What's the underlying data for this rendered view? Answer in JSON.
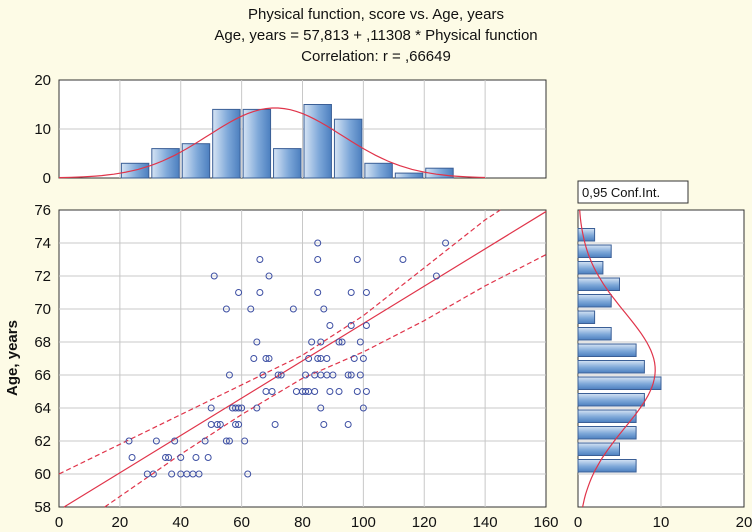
{
  "chart_data": {
    "type": "scatter",
    "title_lines": [
      "Physical function, score vs. Age, years",
      "Age, years = 57,813 + ,11308 * Physical function",
      "Correlation: r = ,66649"
    ],
    "xlabel": "Physical function, score",
    "ylabel": "Age, years",
    "xlim": [
      0,
      160
    ],
    "ylim": [
      58,
      76
    ],
    "x_ticks": [
      "0",
      "20",
      "40",
      "60",
      "80",
      "100",
      "120",
      "140",
      "160"
    ],
    "y_ticks": [
      "58",
      "60",
      "62",
      "64",
      "66",
      "68",
      "70",
      "72",
      "74",
      "76"
    ],
    "regression": {
      "intercept": 57.813,
      "slope": 0.11308,
      "r": 0.66649
    },
    "confidence_label": "0,95 Conf.Int.",
    "points": [
      [
        23,
        62
      ],
      [
        24,
        61
      ],
      [
        29,
        60
      ],
      [
        31,
        60
      ],
      [
        32,
        62
      ],
      [
        35,
        61
      ],
      [
        36,
        61
      ],
      [
        37,
        60
      ],
      [
        38,
        62
      ],
      [
        40,
        61
      ],
      [
        40,
        60
      ],
      [
        42,
        60
      ],
      [
        44,
        60
      ],
      [
        45,
        61
      ],
      [
        46,
        60
      ],
      [
        48,
        62
      ],
      [
        49,
        61
      ],
      [
        50,
        64
      ],
      [
        50,
        63
      ],
      [
        51,
        72
      ],
      [
        52,
        63
      ],
      [
        53,
        63
      ],
      [
        55,
        70
      ],
      [
        55,
        62
      ],
      [
        56,
        66
      ],
      [
        56,
        62
      ],
      [
        57,
        64
      ],
      [
        58,
        63
      ],
      [
        58,
        64
      ],
      [
        59,
        71
      ],
      [
        59,
        63
      ],
      [
        59,
        64
      ],
      [
        60,
        64
      ],
      [
        61,
        62
      ],
      [
        62,
        60
      ],
      [
        63,
        70
      ],
      [
        64,
        67
      ],
      [
        65,
        64
      ],
      [
        65,
        68
      ],
      [
        66,
        73
      ],
      [
        66,
        71
      ],
      [
        67,
        66
      ],
      [
        68,
        67
      ],
      [
        68,
        65
      ],
      [
        69,
        67
      ],
      [
        69,
        72
      ],
      [
        70,
        65
      ],
      [
        71,
        63
      ],
      [
        72,
        66
      ],
      [
        73,
        66
      ],
      [
        77,
        70
      ],
      [
        78,
        65
      ],
      [
        80,
        65
      ],
      [
        81,
        66
      ],
      [
        81,
        65
      ],
      [
        82,
        67
      ],
      [
        82,
        65
      ],
      [
        83,
        68
      ],
      [
        84,
        66
      ],
      [
        84,
        65
      ],
      [
        85,
        74
      ],
      [
        85,
        73
      ],
      [
        85,
        71
      ],
      [
        85,
        67
      ],
      [
        86,
        68
      ],
      [
        86,
        67
      ],
      [
        86,
        64
      ],
      [
        86,
        66
      ],
      [
        87,
        70
      ],
      [
        87,
        63
      ],
      [
        88,
        66
      ],
      [
        88,
        67
      ],
      [
        89,
        69
      ],
      [
        89,
        65
      ],
      [
        90,
        66
      ],
      [
        92,
        65
      ],
      [
        92,
        68
      ],
      [
        93,
        68
      ],
      [
        95,
        66
      ],
      [
        95,
        63
      ],
      [
        96,
        71
      ],
      [
        96,
        66
      ],
      [
        96,
        69
      ],
      [
        97,
        67
      ],
      [
        98,
        73
      ],
      [
        98,
        65
      ],
      [
        99,
        68
      ],
      [
        99,
        66
      ],
      [
        100,
        64
      ],
      [
        100,
        67
      ],
      [
        101,
        71
      ],
      [
        101,
        69
      ],
      [
        101,
        65
      ],
      [
        113,
        73
      ],
      [
        124,
        72
      ],
      [
        127,
        74
      ]
    ],
    "ci_upper": [
      [
        0,
        60
      ],
      [
        20,
        61.8
      ],
      [
        40,
        63.6
      ],
      [
        60,
        65.4
      ],
      [
        80,
        67.2
      ],
      [
        100,
        69.6
      ],
      [
        120,
        72.5
      ],
      [
        140,
        75.4
      ],
      [
        145,
        76
      ]
    ],
    "ci_lower": [
      [
        15,
        58
      ],
      [
        40,
        61.2
      ],
      [
        60,
        63.6
      ],
      [
        80,
        65.8
      ],
      [
        100,
        67.4
      ],
      [
        120,
        69.3
      ],
      [
        140,
        71.4
      ],
      [
        160,
        73.3
      ]
    ],
    "x_histogram": {
      "ylim": [
        0,
        20
      ],
      "y_ticks": [
        "0",
        "10",
        "20"
      ],
      "bins": [
        [
          20,
          30,
          3
        ],
        [
          30,
          40,
          6
        ],
        [
          40,
          50,
          7
        ],
        [
          50,
          60,
          14
        ],
        [
          60,
          70,
          14
        ],
        [
          70,
          80,
          6
        ],
        [
          80,
          90,
          15
        ],
        [
          90,
          100,
          12
        ],
        [
          100,
          110,
          3
        ],
        [
          110,
          120,
          1
        ],
        [
          120,
          130,
          2
        ]
      ],
      "normal_mean": 71,
      "normal_sd": 22,
      "normal_peak": 14.3
    },
    "y_histogram": {
      "xlim": [
        0,
        20
      ],
      "x_ticks": [
        "0",
        "10",
        "20"
      ],
      "bins": [
        [
          60,
          61,
          7
        ],
        [
          61,
          62,
          5
        ],
        [
          62,
          63,
          7
        ],
        [
          63,
          64,
          7
        ],
        [
          64,
          65,
          8
        ],
        [
          65,
          66,
          10
        ],
        [
          66,
          67,
          8
        ],
        [
          67,
          68,
          7
        ],
        [
          68,
          69,
          4
        ],
        [
          69,
          70,
          2
        ],
        [
          70,
          71,
          4
        ],
        [
          71,
          72,
          5
        ],
        [
          72,
          73,
          3
        ],
        [
          73,
          74,
          4
        ],
        [
          74,
          75,
          2
        ]
      ],
      "normal_mean": 66.3,
      "normal_sd": 3.5,
      "normal_peak": 9.3
    }
  }
}
